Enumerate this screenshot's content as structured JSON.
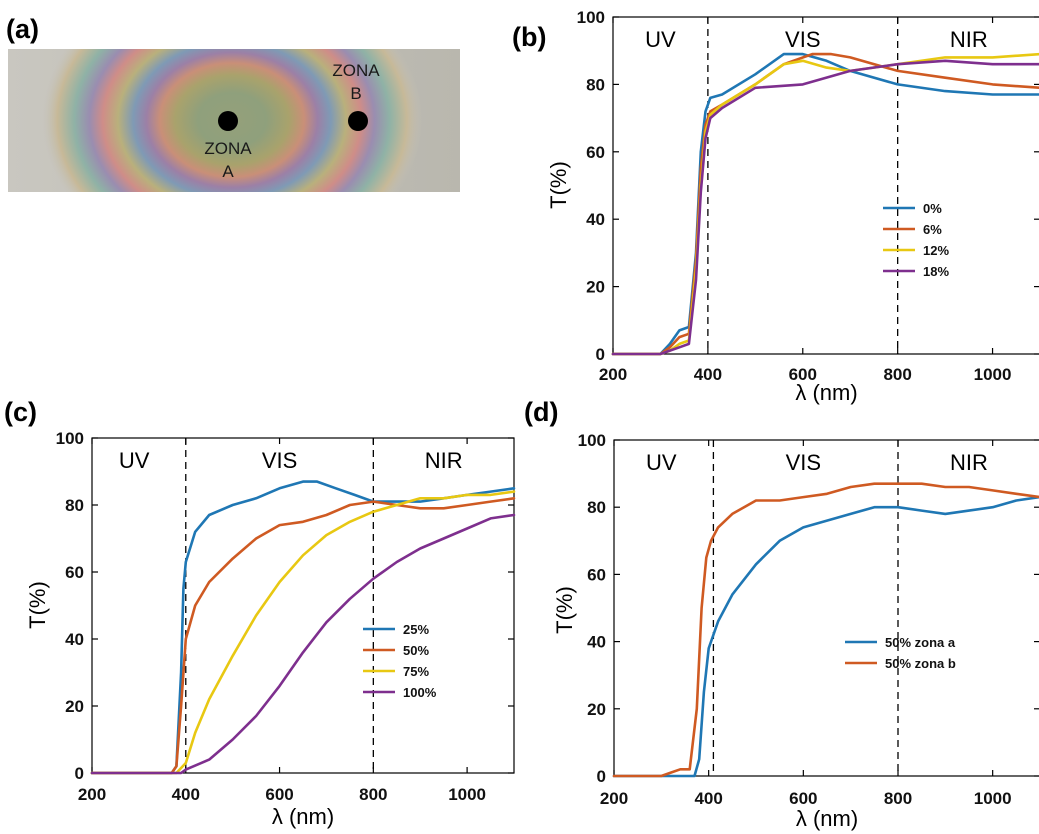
{
  "photo": {
    "panel_label": "(a)",
    "zone_a": [
      "ZONA",
      "A"
    ],
    "zone_b": [
      "ZONA",
      "B"
    ]
  },
  "colors": {
    "blue": "#1f77b4",
    "orange": "#cf5a22",
    "yellow": "#e8c812",
    "purple": "#7e2f8e"
  },
  "chart_data": [
    {
      "panel": "(b)",
      "type": "line",
      "xlabel": "λ (nm)",
      "ylabel": "T(%)",
      "xlim": [
        200,
        1100
      ],
      "ylim": [
        0,
        100
      ],
      "xticks": [
        200,
        400,
        600,
        800,
        1000
      ],
      "yticks": [
        0,
        20,
        40,
        60,
        80,
        100
      ],
      "regions": [
        {
          "label": "UV",
          "x": 300
        },
        {
          "label": "VIS",
          "x": 600
        },
        {
          "label": "NIR",
          "x": 950
        }
      ],
      "dividers": [
        400,
        800
      ],
      "legend_position": "center-right",
      "series": [
        {
          "name": "0%",
          "color": "#1f77b4",
          "x": [
            200,
            300,
            320,
            340,
            360,
            375,
            385,
            395,
            405,
            430,
            500,
            560,
            600,
            650,
            700,
            800,
            900,
            1000,
            1100
          ],
          "y": [
            0,
            0,
            3,
            7,
            8,
            30,
            60,
            72,
            76,
            77,
            83,
            89,
            89,
            87,
            84,
            80,
            78,
            77,
            77
          ]
        },
        {
          "name": "6%",
          "color": "#cf5a22",
          "x": [
            200,
            300,
            320,
            340,
            360,
            375,
            385,
            395,
            405,
            430,
            500,
            560,
            620,
            660,
            700,
            800,
            900,
            1000,
            1100
          ],
          "y": [
            0,
            0,
            2,
            5,
            6,
            28,
            55,
            68,
            72,
            74,
            80,
            86,
            89,
            89,
            88,
            84,
            82,
            80,
            79
          ]
        },
        {
          "name": "12%",
          "color": "#e8c812",
          "x": [
            200,
            300,
            320,
            340,
            360,
            375,
            385,
            395,
            405,
            430,
            500,
            560,
            600,
            650,
            700,
            800,
            900,
            1000,
            1100
          ],
          "y": [
            0,
            0,
            1,
            3,
            4,
            25,
            50,
            66,
            71,
            74,
            80,
            86,
            87,
            85,
            84,
            86,
            88,
            88,
            89
          ]
        },
        {
          "name": "18%",
          "color": "#7e2f8e",
          "x": [
            200,
            300,
            320,
            340,
            360,
            375,
            385,
            395,
            405,
            430,
            500,
            600,
            700,
            800,
            900,
            1000,
            1100
          ],
          "y": [
            0,
            0,
            1,
            2,
            3,
            22,
            48,
            64,
            70,
            73,
            79,
            80,
            84,
            86,
            87,
            86,
            86
          ]
        }
      ]
    },
    {
      "panel": "(c)",
      "type": "line",
      "xlabel": "λ (nm)",
      "ylabel": "T(%)",
      "xlim": [
        200,
        1100
      ],
      "ylim": [
        0,
        100
      ],
      "xticks": [
        200,
        400,
        600,
        800,
        1000
      ],
      "yticks": [
        0,
        20,
        40,
        60,
        80,
        100
      ],
      "regions": [
        {
          "label": "UV",
          "x": 290
        },
        {
          "label": "VIS",
          "x": 600
        },
        {
          "label": "NIR",
          "x": 950
        }
      ],
      "dividers": [
        400,
        800
      ],
      "legend_position": "center-right",
      "series": [
        {
          "name": "25%",
          "color": "#1f77b4",
          "x": [
            200,
            370,
            380,
            390,
            395,
            400,
            420,
            450,
            500,
            550,
            600,
            650,
            680,
            720,
            760,
            800,
            850,
            900,
            950,
            1000,
            1050,
            1100
          ],
          "y": [
            0,
            0,
            2,
            30,
            55,
            63,
            72,
            77,
            80,
            82,
            85,
            87,
            87,
            85,
            83,
            81,
            81,
            81,
            82,
            83,
            84,
            85
          ]
        },
        {
          "name": "50%",
          "color": "#cf5a22",
          "x": [
            200,
            370,
            380,
            390,
            400,
            420,
            450,
            500,
            550,
            600,
            650,
            700,
            750,
            800,
            850,
            900,
            950,
            1000,
            1050,
            1100
          ],
          "y": [
            0,
            0,
            2,
            20,
            40,
            50,
            57,
            64,
            70,
            74,
            75,
            77,
            80,
            81,
            80,
            79,
            79,
            80,
            81,
            82
          ]
        },
        {
          "name": "75%",
          "color": "#e8c812",
          "x": [
            200,
            380,
            400,
            420,
            450,
            500,
            550,
            600,
            650,
            700,
            750,
            800,
            850,
            900,
            950,
            1000,
            1050,
            1100
          ],
          "y": [
            0,
            0,
            3,
            12,
            22,
            35,
            47,
            57,
            65,
            71,
            75,
            78,
            80,
            82,
            82,
            83,
            83,
            84
          ]
        },
        {
          "name": "100%",
          "color": "#7e2f8e",
          "x": [
            200,
            390,
            400,
            450,
            500,
            550,
            600,
            650,
            700,
            750,
            800,
            850,
            900,
            950,
            1000,
            1050,
            1100
          ],
          "y": [
            0,
            0,
            1,
            4,
            10,
            17,
            26,
            36,
            45,
            52,
            58,
            63,
            67,
            70,
            73,
            76,
            77
          ]
        }
      ]
    },
    {
      "panel": "(d)",
      "type": "line",
      "xlabel": "λ (nm)",
      "ylabel": "T(%)",
      "xlim": [
        200,
        1100
      ],
      "ylim": [
        0,
        100
      ],
      "xticks": [
        200,
        400,
        600,
        800,
        1000
      ],
      "yticks": [
        0,
        20,
        40,
        60,
        80,
        100
      ],
      "regions": [
        {
          "label": "UV",
          "x": 300
        },
        {
          "label": "VIS",
          "x": 600
        },
        {
          "label": "NIR",
          "x": 950
        }
      ],
      "dividers": [
        410,
        800
      ],
      "legend_position": "center-right",
      "series": [
        {
          "name": "50% zona a",
          "color": "#1f77b4",
          "x": [
            200,
            370,
            380,
            390,
            400,
            420,
            450,
            500,
            550,
            600,
            650,
            700,
            750,
            800,
            850,
            900,
            950,
            1000,
            1050,
            1100
          ],
          "y": [
            0,
            0,
            5,
            25,
            38,
            46,
            54,
            63,
            70,
            74,
            76,
            78,
            80,
            80,
            79,
            78,
            79,
            80,
            82,
            83
          ]
        },
        {
          "name": "50% zona b",
          "color": "#cf5a22",
          "x": [
            200,
            300,
            320,
            340,
            360,
            375,
            385,
            395,
            405,
            420,
            450,
            500,
            550,
            600,
            650,
            700,
            750,
            800,
            850,
            900,
            950,
            1000,
            1050,
            1100
          ],
          "y": [
            0,
            0,
            1,
            2,
            2,
            20,
            50,
            65,
            70,
            74,
            78,
            82,
            82,
            83,
            84,
            86,
            87,
            87,
            87,
            86,
            86,
            85,
            84,
            83
          ]
        }
      ]
    }
  ]
}
